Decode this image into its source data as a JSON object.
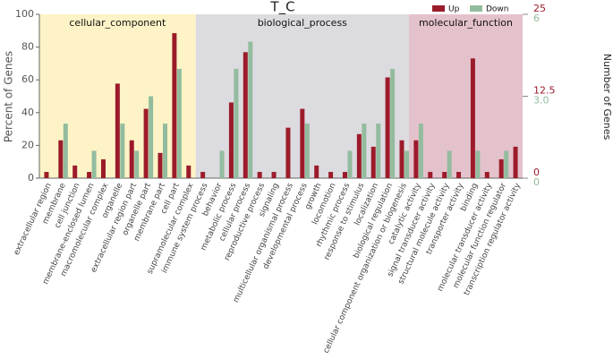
{
  "chart_data": {
    "type": "bar",
    "title": "T_C",
    "ylabel": "Percent of Genes",
    "y2label": "Number of Genes",
    "groups": [
      {
        "name": "cellular_component",
        "color": "#fdf3c6",
        "categories": [
          "extracellular region",
          "membrane",
          "cell junction",
          "membrane-enclosed lumen",
          "macromolecular complex",
          "organelle",
          "extracellular region part",
          "organelle part",
          "membrane part",
          "cell part",
          "supramolecular complex"
        ]
      },
      {
        "name": "biological_process",
        "color": "#dcdbe0",
        "categories": [
          "immune system process",
          "behavior",
          "metabolic process",
          "cellular process",
          "reproductive process",
          "signaling",
          "multicellular organismal process",
          "developmental process",
          "growth",
          "locomotion",
          "rhythmic process",
          "response to stimulus",
          "localization",
          "biological regulation",
          "cellular component organization or biogenesis"
        ]
      },
      {
        "name": "molecular_function",
        "color": "#e4c2cc",
        "categories": [
          "catalytic activity",
          "signal transducer activity",
          "structural molecule activity",
          "transporter activity",
          "binding",
          "molecular transducer activity",
          "molecular function regulator",
          "transcription regulator activity"
        ]
      }
    ],
    "series": [
      {
        "name": "Up",
        "color": "#9b1b2a",
        "values": [
          3.8,
          23.1,
          7.7,
          3.8,
          11.5,
          57.7,
          23.1,
          42.3,
          15.4,
          88.5,
          7.7,
          3.8,
          0,
          46.2,
          76.9,
          3.8,
          3.8,
          30.8,
          42.3,
          7.7,
          3.8,
          3.8,
          26.9,
          19.2,
          61.5,
          23.1,
          23.1,
          3.8,
          3.8,
          3.8,
          73.1,
          3.8,
          11.5,
          19.2
        ]
      },
      {
        "name": "Down",
        "color": "#93bc9e",
        "values": [
          0,
          33.3,
          0,
          16.7,
          0,
          33.3,
          16.7,
          50,
          33.3,
          66.7,
          0,
          0,
          16.7,
          66.7,
          83.3,
          0,
          0,
          0,
          33.3,
          0,
          0,
          16.7,
          33.3,
          33.3,
          66.7,
          16.7,
          33.3,
          0,
          16.7,
          0,
          16.7,
          0,
          16.7,
          0
        ]
      }
    ],
    "ylim": [
      0,
      100
    ],
    "yticks": [
      0,
      20,
      40,
      60,
      80,
      100
    ],
    "y2_axes": [
      {
        "color": "#9b1b2a",
        "lim": [
          0,
          25
        ],
        "ticks": [
          0,
          12.5,
          25
        ]
      },
      {
        "color": "#93bc9e",
        "lim": [
          0,
          6
        ],
        "ticks": [
          0,
          {
            "value": 3,
            "label": "3.0"
          },
          6
        ]
      }
    ],
    "legend": "upper right"
  }
}
